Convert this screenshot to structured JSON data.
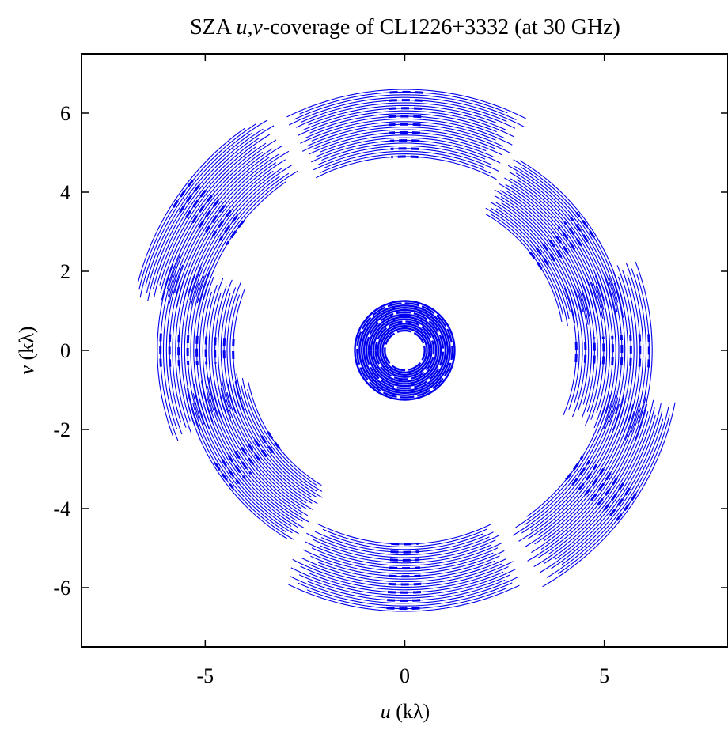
{
  "chart_data": {
    "type": "scatter",
    "title": {
      "prefix": "SZA ",
      "italic": "u,v",
      "suffix": "-coverage of CL1226+3332 (at 30 GHz)"
    },
    "xlabel": {
      "italic": "u",
      "rest": " (kλ)"
    },
    "ylabel": {
      "italic": "v",
      "rest": " (kλ)"
    },
    "xlim": [
      -8.1,
      8.1
    ],
    "ylim": [
      -7.5,
      7.5
    ],
    "xticks": [
      {
        "value": -5,
        "label": "-5"
      },
      {
        "value": 0,
        "label": "0"
      },
      {
        "value": 5,
        "label": "5"
      }
    ],
    "yticks": [
      {
        "value": -6,
        "label": "-6"
      },
      {
        "value": -4,
        "label": "-4"
      },
      {
        "value": -2,
        "label": "-2"
      },
      {
        "value": 0,
        "label": "0"
      },
      {
        "value": 2,
        "label": "2"
      },
      {
        "value": 4,
        "label": "4"
      },
      {
        "value": 6,
        "label": "6"
      }
    ],
    "grid": false,
    "series_color": "#0000ee",
    "series": [
      {
        "kind": "outer-track",
        "center_angle_deg": 90,
        "radius_range": [
          4.9,
          6.6
        ],
        "half_span_deg": 25
      },
      {
        "kind": "outer-track",
        "center_angle_deg": 270,
        "radius_range": [
          4.9,
          6.6
        ],
        "half_span_deg": 25
      },
      {
        "kind": "outer-track",
        "center_angle_deg": 35,
        "radius_range": [
          4.0,
          5.6
        ],
        "half_span_deg": 24
      },
      {
        "kind": "outer-track",
        "center_angle_deg": 215,
        "radius_range": [
          4.0,
          5.6
        ],
        "half_span_deg": 24
      },
      {
        "kind": "outer-track",
        "center_angle_deg": 145,
        "radius_range": [
          5.2,
          6.9
        ],
        "half_span_deg": 22
      },
      {
        "kind": "outer-track",
        "center_angle_deg": 325,
        "radius_range": [
          5.2,
          6.9
        ],
        "half_span_deg": 22
      },
      {
        "kind": "outer-track",
        "center_angle_deg": 0,
        "radius_range": [
          4.3,
          6.2
        ],
        "half_span_deg": 20
      },
      {
        "kind": "outer-track",
        "center_angle_deg": 180,
        "radius_range": [
          4.3,
          6.2
        ],
        "half_span_deg": 20
      },
      {
        "kind": "inner-ring",
        "center": [
          0,
          0
        ],
        "radius_range": [
          0.5,
          1.25
        ]
      }
    ]
  }
}
